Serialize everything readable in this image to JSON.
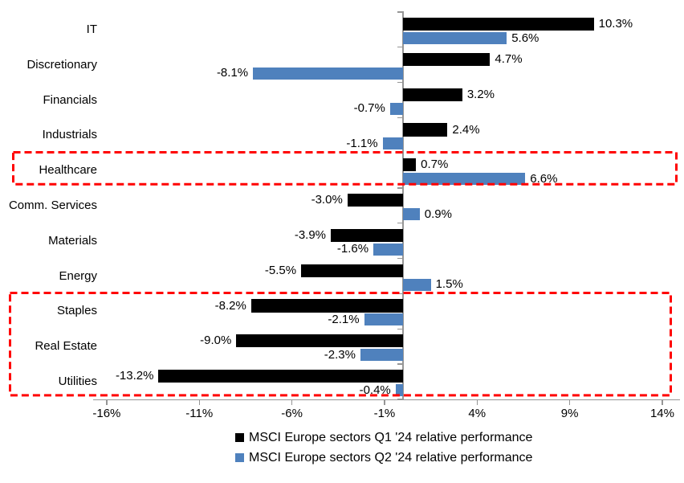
{
  "chart_data": {
    "type": "bar",
    "orientation": "horizontal",
    "title": "",
    "categories": [
      "IT",
      "Discretionary",
      "Financials",
      "Industrials",
      "Healthcare",
      "Comm. Services",
      "Materials",
      "Energy",
      "Staples",
      "Real Estate",
      "Utilities"
    ],
    "series": [
      {
        "name": "MSCI Europe sectors Q1 '24 relative performance",
        "color": "#000000",
        "values": [
          10.3,
          4.7,
          3.2,
          2.4,
          0.7,
          -3.0,
          -3.9,
          -5.5,
          -8.2,
          -9.0,
          -13.2
        ],
        "labels": [
          "10.3%",
          "4.7%",
          "3.2%",
          "2.4%",
          "0.7%",
          "-3.0%",
          "-3.9%",
          "-5.5%",
          "-8.2%",
          "-9.0%",
          "-13.2%"
        ]
      },
      {
        "name": "MSCI Europe sectors Q2 '24 relative performance",
        "color": "#4F81BD",
        "values": [
          5.6,
          -8.1,
          -0.7,
          -1.1,
          6.6,
          0.9,
          -1.6,
          1.5,
          -2.1,
          -2.3,
          -0.4
        ],
        "labels": [
          "5.6%",
          "-8.1%",
          "-0.7%",
          "-1.1%",
          "6.6%",
          "0.9%",
          "-1.6%",
          "1.5%",
          "-2.1%",
          "-2.3%",
          "-0.4%"
        ]
      }
    ],
    "x_axis": {
      "tick_labels": [
        "-16%",
        "-11%",
        "-6%",
        "-1%",
        "4%",
        "9%",
        "14%"
      ],
      "tick_values": [
        -16,
        -11,
        -6,
        -1,
        4,
        9,
        14
      ],
      "range": [
        -16.7,
        15.0
      ]
    },
    "grid": false,
    "legend_position": "bottom",
    "axis_color": "#969696",
    "text_color": "#000000",
    "highlights": [
      {
        "sectors": [
          "Healthcare"
        ],
        "color": "#FF0000",
        "line_style": "dashed"
      },
      {
        "sectors": [
          "Staples",
          "Real Estate",
          "Utilities"
        ],
        "color": "#FF0000",
        "line_style": "dashed"
      }
    ]
  }
}
